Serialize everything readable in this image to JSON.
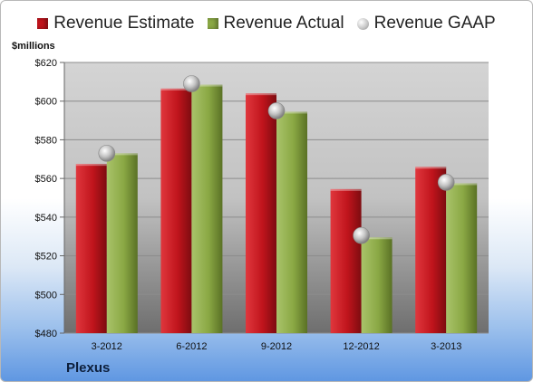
{
  "chart_data": {
    "type": "bar",
    "unit_label": "$millions",
    "company": "Plexus",
    "categories": [
      "3-2012",
      "6-2012",
      "9-2012",
      "12-2012",
      "3-2013"
    ],
    "series": [
      {
        "name": "Revenue Estimate",
        "kind": "bar",
        "color": "#c0141c",
        "values": [
          567.5,
          606.5,
          604,
          554.5,
          566
        ]
      },
      {
        "name": "Revenue Actual",
        "kind": "bar",
        "color": "#8aa844",
        "values": [
          573,
          608.5,
          594.5,
          529.5,
          557.5
        ]
      },
      {
        "name": "Revenue GAAP",
        "kind": "marker",
        "color": "#c8c8c8",
        "values": [
          573,
          609,
          595,
          530.5,
          558
        ]
      }
    ],
    "yticks": [
      "$480",
      "$500",
      "$520",
      "$540",
      "$560",
      "$580",
      "$600",
      "$620"
    ],
    "ylim": [
      480,
      620
    ],
    "grid": true,
    "legend_position": "top"
  }
}
